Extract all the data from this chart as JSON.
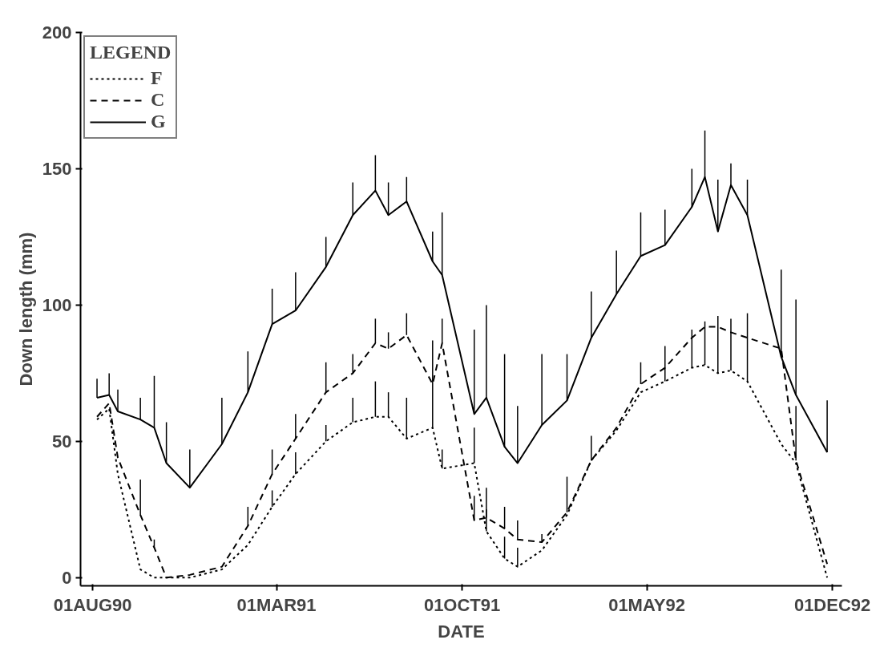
{
  "chart_data": {
    "type": "line",
    "xlabel": "DATE",
    "ylabel": "Down length (mm)",
    "legend_title": "LEGEND",
    "legend": "top left",
    "grid": false,
    "marker": "none",
    "x": [
      "1990-08-06",
      "1990-08-20",
      "1990-08-30",
      "1990-09-25",
      "1990-10-11",
      "1990-10-25",
      "1990-11-21",
      "1990-12-28",
      "1991-01-27",
      "1991-02-24",
      "1991-03-23",
      "1991-04-27",
      "1991-05-28",
      "1991-06-23",
      "1991-07-08",
      "1991-07-29",
      "1991-08-28",
      "1991-09-08",
      "1991-10-15",
      "1991-10-29",
      "1991-11-19",
      "1991-12-04",
      "1992-01-01",
      "1992-01-30",
      "1992-02-27",
      "1992-03-27",
      "1992-04-24",
      "1992-05-22",
      "1992-06-22",
      "1992-07-07",
      "1992-07-22",
      "1992-08-06",
      "1992-08-25",
      "1992-10-03",
      "1992-10-20",
      "1992-11-25"
    ],
    "xlim": [
      "1990-07-18",
      "1992-12-12"
    ],
    "xticks": [
      {
        "value": "1990-08-01",
        "label": "01AUG90"
      },
      {
        "value": "1991-03-01",
        "label": "01MAR91"
      },
      {
        "value": "1991-10-01",
        "label": "01OCT91"
      },
      {
        "value": "1992-05-01",
        "label": "01MAY92"
      },
      {
        "value": "1992-12-01",
        "label": "01DEC92"
      }
    ],
    "ylim": [
      -3,
      200
    ],
    "yticks": [
      0,
      50,
      100,
      150,
      200
    ],
    "series": [
      {
        "name": "F",
        "color": "#000000",
        "line_style": "dotted",
        "values": [
          58,
          62,
          38,
          3,
          0,
          0,
          0,
          3,
          12,
          26,
          38,
          50,
          57,
          59,
          59,
          51,
          55,
          40,
          42,
          17,
          7,
          4,
          10,
          23,
          43,
          54,
          68,
          72,
          77,
          78,
          75,
          76,
          72,
          49,
          42,
          0
        ],
        "errors": [
          null,
          null,
          null,
          null,
          null,
          null,
          null,
          null,
          null,
          [
            26,
            32
          ],
          [
            38,
            46
          ],
          [
            50,
            56
          ],
          [
            57,
            66
          ],
          [
            59,
            72
          ],
          [
            59,
            68
          ],
          [
            51,
            66
          ],
          [
            55,
            71
          ],
          [
            40,
            47
          ],
          [
            42,
            55
          ],
          [
            17,
            25
          ],
          [
            7,
            15
          ],
          [
            4,
            11
          ],
          null,
          null,
          null,
          null,
          null,
          [
            72,
            85
          ],
          [
            77,
            91
          ],
          [
            78,
            94
          ],
          [
            75,
            96
          ],
          [
            76,
            95
          ],
          [
            72,
            97
          ],
          null,
          null,
          null
        ]
      },
      {
        "name": "C",
        "color": "#000000",
        "line_style": "dashed",
        "values": [
          59,
          64,
          44,
          23,
          11,
          0,
          1,
          4,
          19,
          38,
          51,
          68,
          75,
          86,
          84,
          89,
          71,
          86,
          21,
          22,
          18,
          14,
          13,
          24,
          43,
          55,
          71,
          77,
          88,
          92,
          92,
          90,
          88,
          84,
          43,
          5
        ],
        "errors": [
          null,
          null,
          null,
          [
            23,
            36
          ],
          [
            11,
            14
          ],
          null,
          null,
          null,
          [
            19,
            26
          ],
          [
            38,
            47
          ],
          [
            51,
            60
          ],
          [
            68,
            79
          ],
          [
            75,
            82
          ],
          [
            86,
            95
          ],
          [
            84,
            90
          ],
          [
            89,
            97
          ],
          [
            71,
            87
          ],
          [
            86,
            95
          ],
          [
            21,
            30
          ],
          [
            22,
            33
          ],
          [
            18,
            26
          ],
          [
            14,
            21
          ],
          [
            13,
            16
          ],
          [
            24,
            37
          ],
          [
            43,
            52
          ],
          null,
          [
            71,
            79
          ],
          null,
          null,
          null,
          null,
          null,
          null,
          null,
          [
            43,
            63
          ],
          null
        ]
      },
      {
        "name": "G",
        "color": "#000000",
        "line_style": "solid",
        "values": [
          66,
          67,
          61,
          58,
          55,
          42,
          33,
          49,
          68,
          93,
          98,
          114,
          133,
          142,
          133,
          138,
          116,
          111,
          60,
          66,
          48,
          42,
          56,
          65,
          88,
          104,
          118,
          122,
          136,
          147,
          127,
          144,
          133,
          81,
          67,
          46
        ],
        "errors": [
          [
            66,
            73
          ],
          [
            67,
            75
          ],
          [
            61,
            69
          ],
          [
            58,
            66
          ],
          [
            55,
            74
          ],
          [
            42,
            57
          ],
          [
            33,
            47
          ],
          [
            49,
            66
          ],
          [
            68,
            83
          ],
          [
            93,
            106
          ],
          [
            98,
            112
          ],
          [
            114,
            125
          ],
          [
            133,
            145
          ],
          [
            142,
            155
          ],
          [
            133,
            145
          ],
          [
            138,
            147
          ],
          [
            116,
            127
          ],
          [
            111,
            134
          ],
          [
            60,
            91
          ],
          [
            66,
            100
          ],
          [
            48,
            82
          ],
          [
            42,
            63
          ],
          [
            56,
            82
          ],
          [
            65,
            82
          ],
          [
            88,
            105
          ],
          [
            104,
            120
          ],
          [
            118,
            134
          ],
          [
            122,
            135
          ],
          [
            136,
            150
          ],
          [
            147,
            164
          ],
          [
            127,
            146
          ],
          [
            144,
            152
          ],
          [
            133,
            146
          ],
          [
            81,
            113
          ],
          [
            67,
            102
          ],
          [
            46,
            65
          ]
        ]
      }
    ]
  }
}
